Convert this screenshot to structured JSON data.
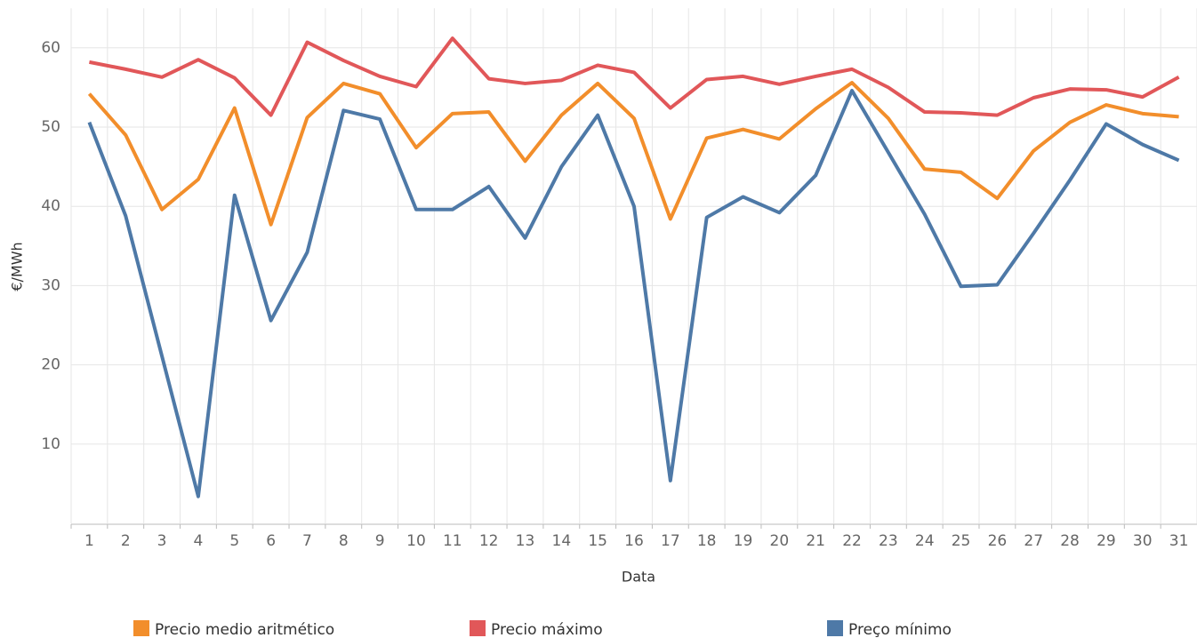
{
  "chart_data": {
    "type": "line",
    "x_label": "Data",
    "y_label": "€/MWh",
    "categories": [
      "1",
      "2",
      "3",
      "4",
      "5",
      "6",
      "7",
      "8",
      "9",
      "10",
      "11",
      "12",
      "13",
      "14",
      "15",
      "16",
      "17",
      "18",
      "19",
      "20",
      "21",
      "22",
      "23",
      "24",
      "25",
      "26",
      "27",
      "28",
      "29",
      "30",
      "31"
    ],
    "series": [
      {
        "name": "Precio medio aritmético",
        "color": "#f28e2b",
        "values": [
          54.2,
          49.0,
          39.6,
          43.4,
          52.4,
          37.7,
          51.2,
          55.5,
          54.2,
          47.4,
          51.7,
          51.9,
          45.7,
          51.5,
          55.5,
          51.1,
          38.4,
          48.6,
          49.7,
          48.5,
          52.3,
          55.6,
          51.1,
          44.7,
          44.3,
          41.0,
          47.0,
          50.6,
          52.8,
          51.7,
          51.3
        ]
      },
      {
        "name": "Precio máximo",
        "color": "#e15759",
        "values": [
          58.2,
          57.3,
          56.3,
          58.5,
          56.2,
          51.5,
          60.7,
          58.4,
          56.4,
          55.1,
          61.2,
          56.1,
          55.5,
          55.9,
          57.8,
          56.9,
          52.4,
          56.0,
          56.4,
          55.4,
          56.4,
          57.3,
          55.0,
          51.9,
          51.8,
          51.5,
          53.7,
          54.8,
          54.7,
          53.8,
          56.3
        ]
      },
      {
        "name": "Preço mínimo",
        "color": "#4e79a7",
        "values": [
          50.6,
          38.8,
          21.1,
          3.4,
          41.4,
          25.6,
          34.2,
          52.1,
          51.0,
          39.6,
          39.6,
          42.5,
          36.0,
          45.0,
          51.5,
          40.0,
          5.4,
          38.6,
          41.2,
          39.2,
          43.9,
          54.6,
          46.8,
          39.0,
          29.9,
          30.1,
          36.6,
          43.3,
          50.4,
          47.8,
          45.8
        ]
      }
    ],
    "ylim": [
      0,
      65
    ],
    "yticks": [
      10,
      20,
      30,
      40,
      50,
      60
    ],
    "grid": true
  }
}
